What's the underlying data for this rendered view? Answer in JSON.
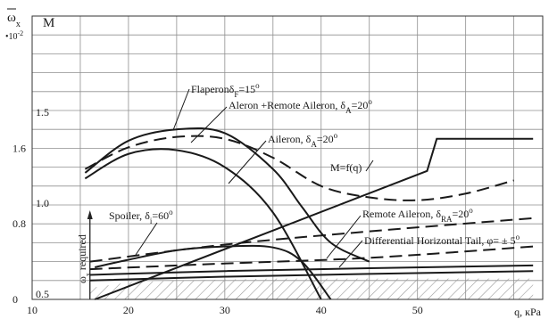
{
  "chart_data": {
    "type": "line",
    "x": {
      "label": "q, кPa",
      "ticks": [
        10,
        20,
        30,
        40,
        50
      ],
      "range": [
        10,
        63
      ]
    },
    "y_left": {
      "label": "M",
      "ticks": [
        {
          "value": 0,
          "label": "0"
        },
        {
          "value": 0.8,
          "label": "0.8"
        },
        {
          "value": 1.6,
          "label": "1.6"
        }
      ],
      "range": [
        0,
        3.0
      ]
    },
    "y_omega": {
      "symbol": "ω",
      "subscript": "x",
      "multiplier": "•10",
      "exponent": "-2",
      "ticks": [
        {
          "value": 0.5,
          "label": "0.5"
        },
        {
          "value": 1.0,
          "label": "1.0"
        },
        {
          "value": 1.5,
          "label": "1.5"
        }
      ]
    },
    "grid": true,
    "series": [
      {
        "name": "Flaperon",
        "delta": "δ",
        "sub": "F",
        "value": "=15",
        "sup": "o",
        "style": "solid",
        "x": [
          15.5,
          20,
          25,
          30,
          35,
          38,
          41,
          45
        ],
        "y": [
          1.34,
          1.68,
          1.8,
          1.76,
          1.38,
          0.98,
          0.6,
          0.4
        ]
      },
      {
        "name": "Aleron +Remote Aileron,  ",
        "delta": "δ",
        "sub": "A",
        "value": "=20",
        "sup": "o",
        "style": "dashed",
        "x": [
          15.5,
          20,
          25,
          30,
          35,
          40,
          45,
          50,
          55,
          60
        ],
        "y": [
          1.38,
          1.61,
          1.72,
          1.7,
          1.5,
          1.2,
          1.08,
          1.05,
          1.12,
          1.26
        ]
      },
      {
        "name": "Aileron, ",
        "delta": "δ",
        "sub": "A",
        "value": "=20",
        "sup": "o",
        "style": "solid",
        "x": [
          15.5,
          20,
          25,
          30,
          35,
          40
        ],
        "y": [
          1.28,
          1.54,
          1.58,
          1.4,
          0.92,
          0.0
        ]
      },
      {
        "name": "M=f(q)",
        "style": "solid",
        "x": [
          16.5,
          51,
          52,
          62
        ],
        "y": [
          0.0,
          1.36,
          1.7,
          1.7
        ]
      },
      {
        "name": "Spoiler, ",
        "delta": "δ",
        "sub": "i",
        "value": "=60",
        "sup": "o",
        "style": "solid",
        "x": [
          16.5,
          20,
          25,
          30,
          35,
          38,
          41
        ],
        "y": [
          0.34,
          0.42,
          0.52,
          0.56,
          0.55,
          0.4,
          0.0
        ]
      },
      {
        "name": "Remote Aileron, ",
        "delta": "δ",
        "sub": "RA",
        "value": "=20",
        "sup": "o",
        "style": "dashed",
        "x": [
          16,
          30,
          45,
          62
        ],
        "y": [
          0.4,
          0.58,
          0.72,
          0.86
        ]
      },
      {
        "name": "Differential Horizontal Tail, ",
        "delta": "φ",
        "value": "= ± 5",
        "sup": "o",
        "style": "dashed",
        "x": [
          16,
          30,
          45,
          62
        ],
        "y": [
          0.32,
          0.38,
          0.44,
          0.56
        ]
      },
      {
        "name": "",
        "style": "solid",
        "x": [
          16,
          30,
          45,
          62
        ],
        "y": [
          0.26,
          0.3,
          0.33,
          0.36
        ]
      },
      {
        "name": "",
        "style": "solid",
        "x": [
          16,
          30,
          45,
          62
        ],
        "y": [
          0.2,
          0.24,
          0.27,
          0.3
        ]
      }
    ],
    "required": {
      "label": "ω",
      "sub": "x",
      "suffix": " required",
      "x": [
        16,
        20,
        25,
        30,
        35,
        40,
        45,
        50,
        55,
        62
      ],
      "y": [
        0.12,
        0.18,
        0.2,
        0.21,
        0.22,
        0.22,
        0.22,
        0.22,
        0.22,
        0.22
      ]
    }
  }
}
